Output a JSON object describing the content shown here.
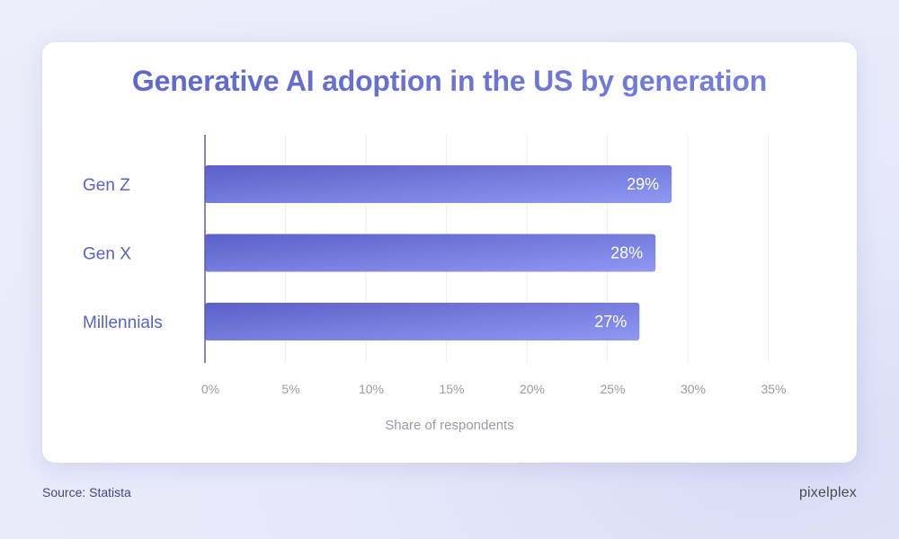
{
  "colors": {
    "bar_start": "#5a60c8",
    "bar_end": "#8f99f3",
    "axis": "#5a5f9e",
    "grid": "#eeeef3"
  },
  "footer": {
    "source": "Source: Statista",
    "brand": "pixelplex"
  },
  "chart_data": {
    "type": "bar",
    "orientation": "horizontal",
    "title": "Generative AI adoption in the US by generation",
    "xlabel": "Share of respondents",
    "ylabel": "",
    "categories": [
      "Gen Z",
      "Gen X",
      "Millennials"
    ],
    "values": [
      29,
      28,
      27
    ],
    "value_labels": [
      "29%",
      "28%",
      "27%"
    ],
    "xlim": [
      0,
      35
    ],
    "x_ticks": [
      0,
      5,
      10,
      15,
      20,
      25,
      30,
      35
    ],
    "x_tick_labels": [
      "0%",
      "5%",
      "10%",
      "15%",
      "20%",
      "25%",
      "30%",
      "35%"
    ],
    "grid": true,
    "legend": "none"
  }
}
